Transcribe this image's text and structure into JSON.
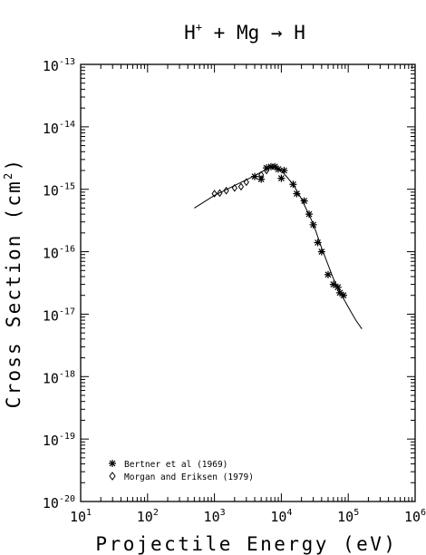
{
  "chart_data": {
    "type": "scatter",
    "top_label": "",
    "title": "H⁺ + Mg → H",
    "title_parts": {
      "ion": "H",
      "charge": "+",
      "plus": "+",
      "target": "Mg",
      "arrow": "→",
      "product": "H"
    },
    "xlabel": "Projectile Energy (eV)",
    "ylabel": "Cross Section (cm²)",
    "ylabel_parts": {
      "main": "Cross Section (cm",
      "sup": "2",
      "close": ")"
    },
    "x_scale": "log",
    "y_scale": "log",
    "xlim": [
      10,
      1000000
    ],
    "ylim": [
      1e-20,
      1e-13
    ],
    "x_ticks": [
      {
        "value": 10,
        "base": "10",
        "exp": "1"
      },
      {
        "value": 100,
        "base": "10",
        "exp": "2"
      },
      {
        "value": 1000,
        "base": "10",
        "exp": "3"
      },
      {
        "value": 10000,
        "base": "10",
        "exp": "4"
      },
      {
        "value": 100000,
        "base": "10",
        "exp": "5"
      },
      {
        "value": 1000000,
        "base": "10",
        "exp": "6"
      }
    ],
    "y_ticks": [
      {
        "value": 1e-13,
        "base": "10",
        "exp": "-13"
      },
      {
        "value": 1e-14,
        "base": "10",
        "exp": "-14"
      },
      {
        "value": 1e-15,
        "base": "10",
        "exp": "-15"
      },
      {
        "value": 1e-16,
        "base": "10",
        "exp": "-16"
      },
      {
        "value": 1e-17,
        "base": "10",
        "exp": "-17"
      },
      {
        "value": 1e-18,
        "base": "10",
        "exp": "-18"
      },
      {
        "value": 1e-19,
        "base": "10",
        "exp": "-19"
      },
      {
        "value": 1e-20,
        "base": "10",
        "exp": "-20"
      }
    ],
    "legend_position": "bottom-left",
    "series": [
      {
        "name": "Bertner et al (1969)",
        "marker": "asterisk",
        "points": [
          {
            "x": 4000,
            "y": 1.6e-15
          },
          {
            "x": 5000,
            "y": 1.45e-15
          },
          {
            "x": 6000,
            "y": 2.2e-15
          },
          {
            "x": 7000,
            "y": 2.3e-15
          },
          {
            "x": 8000,
            "y": 2.3e-15
          },
          {
            "x": 9000,
            "y": 2.1e-15
          },
          {
            "x": 10000,
            "y": 1.5e-15
          },
          {
            "x": 11000,
            "y": 2e-15
          },
          {
            "x": 15000,
            "y": 1.2e-15
          },
          {
            "x": 17000,
            "y": 8.5e-16
          },
          {
            "x": 22000,
            "y": 6.5e-16
          },
          {
            "x": 26000,
            "y": 4e-16
          },
          {
            "x": 30000,
            "y": 2.7e-16
          },
          {
            "x": 35000,
            "y": 1.4e-16
          },
          {
            "x": 40000,
            "y": 1e-16
          },
          {
            "x": 50000,
            "y": 4.3e-17
          },
          {
            "x": 60000,
            "y": 3e-17
          },
          {
            "x": 70000,
            "y": 2.7e-17
          },
          {
            "x": 75000,
            "y": 2.2e-17
          },
          {
            "x": 85000,
            "y": 2e-17
          }
        ]
      },
      {
        "name": "Morgan and Eriksen (1979)",
        "marker": "diamond",
        "points": [
          {
            "x": 1000,
            "y": 8.5e-16
          },
          {
            "x": 1200,
            "y": 8.7e-16
          },
          {
            "x": 1500,
            "y": 9.5e-16
          },
          {
            "x": 2000,
            "y": 1.05e-15
          },
          {
            "x": 2500,
            "y": 1.1e-15
          },
          {
            "x": 3000,
            "y": 1.3e-15
          },
          {
            "x": 5000,
            "y": 1.7e-15
          },
          {
            "x": 6000,
            "y": 2e-15
          }
        ]
      },
      {
        "name": "",
        "marker": "line",
        "points": [
          {
            "x": 500,
            "y": 5e-16
          },
          {
            "x": 1000,
            "y": 8e-16
          },
          {
            "x": 2000,
            "y": 1.15e-15
          },
          {
            "x": 4000,
            "y": 1.65e-15
          },
          {
            "x": 6000,
            "y": 2.1e-15
          },
          {
            "x": 8000,
            "y": 2.3e-15
          },
          {
            "x": 10000,
            "y": 2e-15
          },
          {
            "x": 15000,
            "y": 1.2e-15
          },
          {
            "x": 20000,
            "y": 7e-16
          },
          {
            "x": 30000,
            "y": 2.8e-16
          },
          {
            "x": 40000,
            "y": 1.15e-16
          },
          {
            "x": 60000,
            "y": 3.7e-17
          },
          {
            "x": 80000,
            "y": 2e-17
          },
          {
            "x": 100000,
            "y": 1.3e-17
          },
          {
            "x": 130000,
            "y": 8e-18
          },
          {
            "x": 160000,
            "y": 5.8e-18
          }
        ]
      }
    ]
  }
}
